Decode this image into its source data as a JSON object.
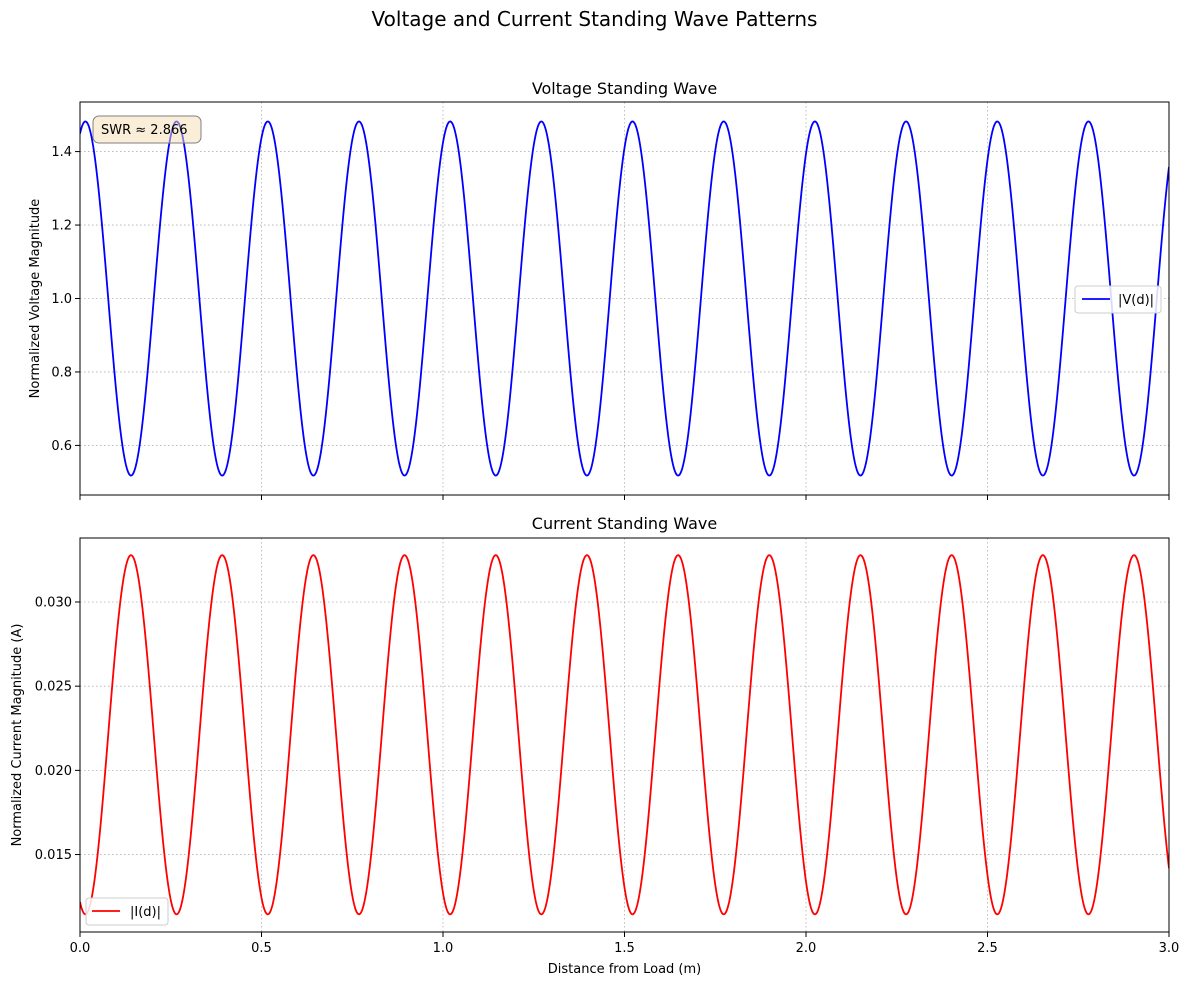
{
  "figure": {
    "title": "Voltage and Current Standing Wave Patterns"
  },
  "chart_data": [
    {
      "type": "line",
      "title": "Voltage Standing Wave",
      "xlabel": "",
      "ylabel": "Normalized Voltage Magnitude",
      "xlim": [
        0,
        3.0
      ],
      "ylim": [
        0.465,
        1.535
      ],
      "yticks": [
        0.6,
        0.8,
        1.0,
        1.2,
        1.4
      ],
      "ytick_labels": [
        "0.6",
        "0.8",
        "1.0",
        "1.2",
        "1.4"
      ],
      "xticks": [
        0,
        0.5,
        1.0,
        1.5,
        2.0,
        2.5,
        3.0
      ],
      "grid": true,
      "legend_position": "center-right",
      "annotation": "SWR ≈ 2.866",
      "series": [
        {
          "name": "|V(d)|",
          "color": "#0000ff",
          "function": "standing-wave-voltage",
          "max": 1.482,
          "min": 0.518,
          "period_m": 0.2512,
          "first_max_x": 0.0149
        }
      ]
    },
    {
      "type": "line",
      "title": "Current Standing Wave",
      "xlabel": "Distance from Load (m)",
      "ylabel": "Normalized Current Magnitude (A)",
      "xlim": [
        0,
        3.0
      ],
      "ylim": [
        0.0104,
        0.0338
      ],
      "yticks": [
        0.015,
        0.02,
        0.025,
        0.03
      ],
      "ytick_labels": [
        "0.015",
        "0.020",
        "0.025",
        "0.030"
      ],
      "xticks": [
        0,
        0.5,
        1.0,
        1.5,
        2.0,
        2.5,
        3.0
      ],
      "xtick_labels": [
        "0.0",
        "0.5",
        "1.0",
        "1.5",
        "2.0",
        "2.5",
        "3.0"
      ],
      "grid": true,
      "legend_position": "lower-left",
      "series": [
        {
          "name": "|I(d)|",
          "color": "#ff0000",
          "function": "standing-wave-current",
          "max": 0.03278,
          "min": 0.01145,
          "period_m": 0.2512,
          "first_min_x": 0.0149
        }
      ]
    }
  ]
}
